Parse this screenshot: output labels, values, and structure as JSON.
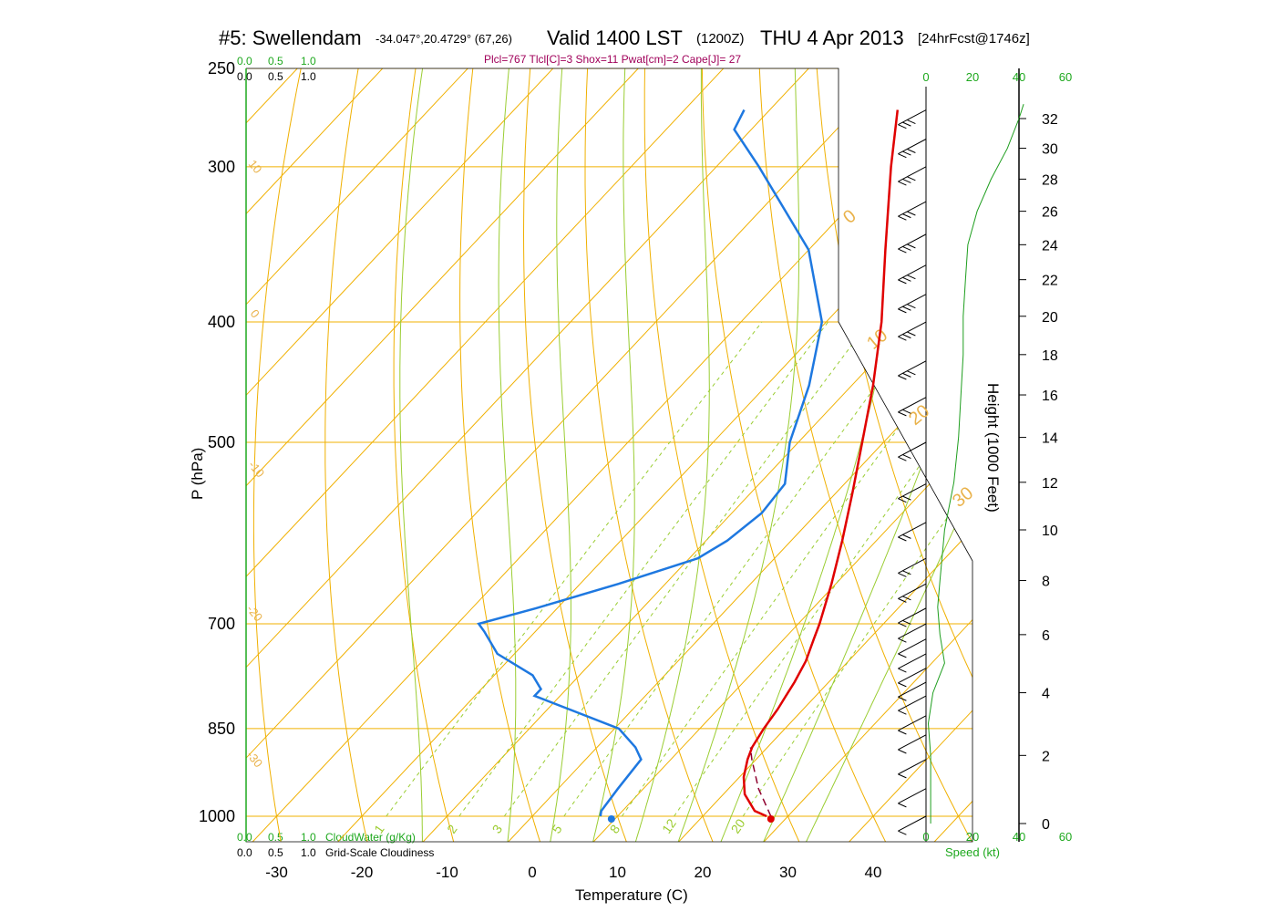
{
  "title": {
    "station": "#5: Swellendam",
    "coords": "-34.047°,20.4729° (67,26)",
    "valid": "Valid 1400 LST",
    "zulu": "(1200Z)",
    "date": "THU 4 Apr 2013",
    "forecast": "[24hrFcst@1746z]"
  },
  "subtitle": "Plcl=767 Tlcl[C]=3 Shox=11 Pwat[cm]=2 Cape[J]= 27",
  "left_scale": {
    "green": [
      "0.0",
      "0.5",
      "1.0"
    ],
    "black": [
      "0.0",
      "0.5",
      "1.0"
    ]
  },
  "bottom_scale": {
    "green": [
      "0.0",
      "0.5",
      "1.0"
    ],
    "black": [
      "0.0",
      "0.5",
      "1.0"
    ],
    "cloudwater_label": "CloudWater (g/Kg)",
    "cloudiness_label": "Grid-Scale Cloudiness"
  },
  "speed_axis": {
    "top_ticks": [
      "0",
      "20",
      "40",
      "60"
    ],
    "bottom_ticks": [
      "0",
      "20",
      "40",
      "60"
    ],
    "label": "Speed (kt)"
  },
  "isotherm_labels": [
    "0",
    "10",
    "20",
    "30"
  ],
  "dry_adiabat_labels": [
    "10",
    "0",
    "-10",
    "-20",
    "-30"
  ],
  "mixing_ratio_labels": [
    "1",
    "2",
    "3",
    "5",
    "8",
    "12",
    "20"
  ],
  "colors": {
    "isotherm": "#f0b000",
    "dry_adiabat": "#f0b000",
    "moist_adiabat": "#9acd32",
    "temperature": "#e00000",
    "dewpoint": "#1e78e0",
    "parcel": "#900030",
    "speed": "#1e9e1e",
    "green_text": "#1ea81e"
  },
  "chart_data": {
    "type": "skew-t",
    "xlabel": "Temperature (C)",
    "ylabel": "P (hPa)",
    "y2label": "Height (1000 Feet)",
    "pressure_ticks": [
      250,
      300,
      400,
      500,
      700,
      850,
      1000
    ],
    "temperature_ticks": [
      -30,
      -20,
      -10,
      0,
      10,
      20,
      30,
      40
    ],
    "height_ticks": [
      0,
      2,
      4,
      6,
      8,
      10,
      12,
      14,
      16,
      18,
      20,
      22,
      24,
      26,
      28,
      30,
      32
    ],
    "temperature_profile": [
      {
        "p": 1000,
        "t": 27.5
      },
      {
        "p": 990,
        "t": 25.5
      },
      {
        "p": 960,
        "t": 22.5
      },
      {
        "p": 930,
        "t": 20.5
      },
      {
        "p": 900,
        "t": 19.0
      },
      {
        "p": 880,
        "t": 18.2
      },
      {
        "p": 850,
        "t": 17.5
      },
      {
        "p": 820,
        "t": 17.0
      },
      {
        "p": 800,
        "t": 16.5
      },
      {
        "p": 780,
        "t": 16.0
      },
      {
        "p": 750,
        "t": 15.0
      },
      {
        "p": 720,
        "t": 13.5
      },
      {
        "p": 700,
        "t": 12.5
      },
      {
        "p": 650,
        "t": 9.5
      },
      {
        "p": 600,
        "t": 6.0
      },
      {
        "p": 550,
        "t": 2.0
      },
      {
        "p": 500,
        "t": -2.5
      },
      {
        "p": 450,
        "t": -7.5
      },
      {
        "p": 400,
        "t": -13.5
      },
      {
        "p": 350,
        "t": -21.0
      },
      {
        "p": 300,
        "t": -29.5
      },
      {
        "p": 270,
        "t": -35.0
      }
    ],
    "dewpoint_profile": [
      {
        "p": 1000,
        "t": 8.0
      },
      {
        "p": 990,
        "t": 7.5
      },
      {
        "p": 950,
        "t": 7.0
      },
      {
        "p": 900,
        "t": 6.5
      },
      {
        "p": 880,
        "t": 4.5
      },
      {
        "p": 850,
        "t": 0.5
      },
      {
        "p": 800,
        "t": -13.0
      },
      {
        "p": 790,
        "t": -13.0
      },
      {
        "p": 770,
        "t": -15.5
      },
      {
        "p": 740,
        "t": -22.0
      },
      {
        "p": 710,
        "t": -26.0
      },
      {
        "p": 700,
        "t": -27.5
      },
      {
        "p": 680,
        "t": -22.5
      },
      {
        "p": 650,
        "t": -15.5
      },
      {
        "p": 620,
        "t": -9.0
      },
      {
        "p": 600,
        "t": -7.5
      },
      {
        "p": 570,
        "t": -6.5
      },
      {
        "p": 540,
        "t": -7.0
      },
      {
        "p": 500,
        "t": -11.0
      },
      {
        "p": 450,
        "t": -15.0
      },
      {
        "p": 400,
        "t": -20.5
      },
      {
        "p": 350,
        "t": -30.0
      },
      {
        "p": 300,
        "t": -45.0
      },
      {
        "p": 280,
        "t": -52.0
      },
      {
        "p": 270,
        "t": -53.0
      }
    ],
    "parcel_profile": [
      {
        "p": 1000,
        "t": 28.0
      },
      {
        "p": 950,
        "t": 23.5
      },
      {
        "p": 900,
        "t": 19.5
      },
      {
        "p": 880,
        "t": 18.0
      }
    ],
    "surface_temperature": 28.0,
    "surface_dewpoint": 11.0,
    "speed_profile": [
      {
        "h": 0,
        "kt": 2
      },
      {
        "h": 2,
        "kt": 2
      },
      {
        "h": 3,
        "kt": 1
      },
      {
        "h": 4,
        "kt": 3
      },
      {
        "h": 5,
        "kt": 8
      },
      {
        "h": 6,
        "kt": 6
      },
      {
        "h": 7,
        "kt": 5
      },
      {
        "h": 8,
        "kt": 6
      },
      {
        "h": 10,
        "kt": 8
      },
      {
        "h": 12,
        "kt": 12
      },
      {
        "h": 14,
        "kt": 14
      },
      {
        "h": 16,
        "kt": 15
      },
      {
        "h": 18,
        "kt": 16
      },
      {
        "h": 20,
        "kt": 16
      },
      {
        "h": 22,
        "kt": 17
      },
      {
        "h": 24,
        "kt": 18
      },
      {
        "h": 26,
        "kt": 22
      },
      {
        "h": 28,
        "kt": 28
      },
      {
        "h": 30,
        "kt": 35
      },
      {
        "h": 32,
        "kt": 40
      },
      {
        "h": 33,
        "kt": 42
      }
    ]
  }
}
